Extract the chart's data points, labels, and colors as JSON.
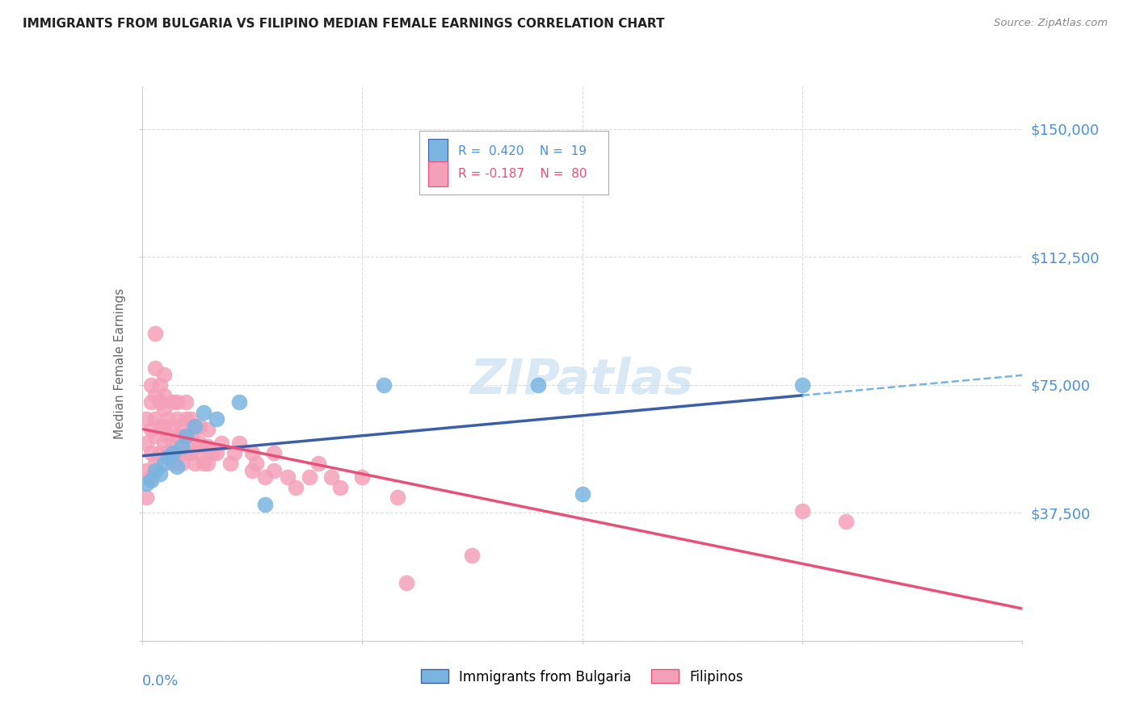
{
  "title": "IMMIGRANTS FROM BULGARIA VS FILIPINO MEDIAN FEMALE EARNINGS CORRELATION CHART",
  "source": "Source: ZipAtlas.com",
  "ylabel": "Median Female Earnings",
  "xlim": [
    0.0,
    0.2
  ],
  "ylim": [
    0,
    162500
  ],
  "yticks": [
    0,
    37500,
    75000,
    112500,
    150000
  ],
  "xticks": [
    0.0,
    0.05,
    0.1,
    0.15,
    0.2
  ],
  "bulgaria_color": "#7ab4e0",
  "filipino_color": "#f4a0b8",
  "bulgaria_R": 0.42,
  "bulgaria_N": 19,
  "filipino_R": -0.187,
  "filipino_N": 80,
  "trend_blue_solid_color": "#3a5fa8",
  "trend_blue_dash_color": "#7ab4e0",
  "trend_pink_color": "#e8507a",
  "bg_color": "#ffffff",
  "grid_color": "#dddddd",
  "axis_label_color": "#4a90d9",
  "watermark_color": "#c8dff0",
  "bulgaria_x": [
    0.001,
    0.002,
    0.003,
    0.004,
    0.005,
    0.006,
    0.007,
    0.008,
    0.009,
    0.01,
    0.012,
    0.014,
    0.017,
    0.022,
    0.028,
    0.055,
    0.09,
    0.1,
    0.15
  ],
  "bulgaria_y": [
    46000,
    47000,
    50000,
    49000,
    52000,
    54000,
    55000,
    51000,
    57000,
    60000,
    63000,
    67000,
    65000,
    70000,
    40000,
    75000,
    75000,
    43000,
    75000
  ],
  "filipino_x": [
    0.001,
    0.001,
    0.001,
    0.001,
    0.002,
    0.002,
    0.002,
    0.002,
    0.002,
    0.003,
    0.003,
    0.003,
    0.003,
    0.003,
    0.003,
    0.004,
    0.004,
    0.004,
    0.004,
    0.005,
    0.005,
    0.005,
    0.005,
    0.005,
    0.006,
    0.006,
    0.006,
    0.007,
    0.007,
    0.007,
    0.007,
    0.008,
    0.008,
    0.008,
    0.008,
    0.009,
    0.009,
    0.009,
    0.01,
    0.01,
    0.01,
    0.01,
    0.011,
    0.011,
    0.011,
    0.012,
    0.012,
    0.012,
    0.013,
    0.013,
    0.013,
    0.014,
    0.014,
    0.015,
    0.015,
    0.015,
    0.016,
    0.017,
    0.018,
    0.02,
    0.021,
    0.022,
    0.025,
    0.025,
    0.026,
    0.028,
    0.03,
    0.03,
    0.033,
    0.035,
    0.038,
    0.04,
    0.043,
    0.045,
    0.05,
    0.058,
    0.06,
    0.075,
    0.15,
    0.16
  ],
  "filipino_y": [
    42000,
    50000,
    58000,
    65000,
    55000,
    62000,
    70000,
    75000,
    48000,
    52000,
    60000,
    65000,
    72000,
    80000,
    90000,
    55000,
    63000,
    70000,
    75000,
    58000,
    63000,
    68000,
    72000,
    78000,
    55000,
    60000,
    65000,
    52000,
    58000,
    63000,
    70000,
    55000,
    60000,
    65000,
    70000,
    52000,
    58000,
    63000,
    55000,
    60000,
    65000,
    70000,
    55000,
    60000,
    65000,
    52000,
    57000,
    62000,
    55000,
    58000,
    63000,
    52000,
    57000,
    52000,
    57000,
    62000,
    55000,
    55000,
    58000,
    52000,
    55000,
    58000,
    50000,
    55000,
    52000,
    48000,
    50000,
    55000,
    48000,
    45000,
    48000,
    52000,
    48000,
    45000,
    48000,
    42000,
    17000,
    25000,
    38000,
    35000
  ]
}
